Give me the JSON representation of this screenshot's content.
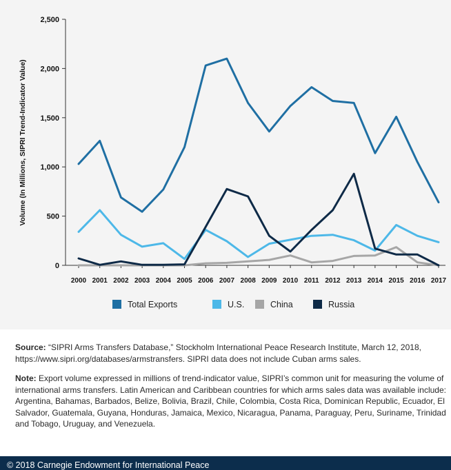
{
  "chart_data": {
    "type": "line",
    "ylabel": "Volume (In Millions, SIPRI Trend-Indicator Value)",
    "xlabel": "",
    "ylim": [
      0,
      2500
    ],
    "yticks": [
      0,
      500,
      1000,
      1500,
      2000,
      2500
    ],
    "ytick_labels": [
      "0",
      "500",
      "1,000",
      "1,500",
      "2,000",
      "2,500"
    ],
    "grid": false,
    "legend_position": "bottom",
    "x": [
      "2000",
      "2001",
      "2002",
      "2003",
      "2004",
      "2005",
      "2006",
      "2007",
      "2008",
      "2009",
      "2010",
      "2011",
      "2012",
      "2013",
      "2014",
      "2015",
      "2016",
      "2017"
    ],
    "series": [
      {
        "name": "Total Exports",
        "color": "#1f6fa3",
        "values": [
          1030,
          1265,
          690,
          545,
          770,
          1200,
          2030,
          2100,
          1650,
          1360,
          1620,
          1810,
          1670,
          1650,
          1140,
          1510,
          1050,
          640
        ]
      },
      {
        "name": "U.S.",
        "color": "#4db8e8",
        "values": [
          340,
          560,
          310,
          190,
          225,
          65,
          360,
          245,
          85,
          220,
          260,
          300,
          310,
          255,
          150,
          410,
          300,
          235
        ]
      },
      {
        "name": "China",
        "color": "#a6a6a6",
        "values": [
          0,
          0,
          0,
          0,
          0,
          0,
          20,
          25,
          40,
          55,
          100,
          30,
          45,
          95,
          100,
          185,
          30,
          0
        ]
      },
      {
        "name": "Russia",
        "color": "#0e2a47",
        "values": [
          70,
          5,
          40,
          5,
          5,
          10,
          390,
          775,
          700,
          300,
          140,
          360,
          560,
          930,
          170,
          110,
          110,
          0
        ]
      }
    ]
  },
  "source": {
    "label": "Source:",
    "text": "“SIPRI Arms Transfers Database,” Stockholm International Peace Research Institute, March 12, 2018, https://www.sipri.org/databases/armstransfers. SIPRI data does not include Cuban arms sales."
  },
  "note": {
    "label": "Note:",
    "text": "Export volume expressed in millions of trend-indicator value, SIPRI’s common unit for measuring the volume of international arms transfers. Latin American and Caribbean countries for which arms sales data was available include: Argentina, Bahamas, Barbados, Belize, Bolivia, Brazil, Chile, Colombia, Costa Rica, Dominican Republic, Ecuador, El Salvador, Guatemala, Guyana, Honduras, Jamaica, Mexico, Nicaragua, Panama, Paraguay, Peru, Suriname, Trinidad and Tobago, Uruguay, and Venezuela."
  },
  "footer": {
    "text": "© 2018 Carnegie Endowment for International Peace"
  }
}
